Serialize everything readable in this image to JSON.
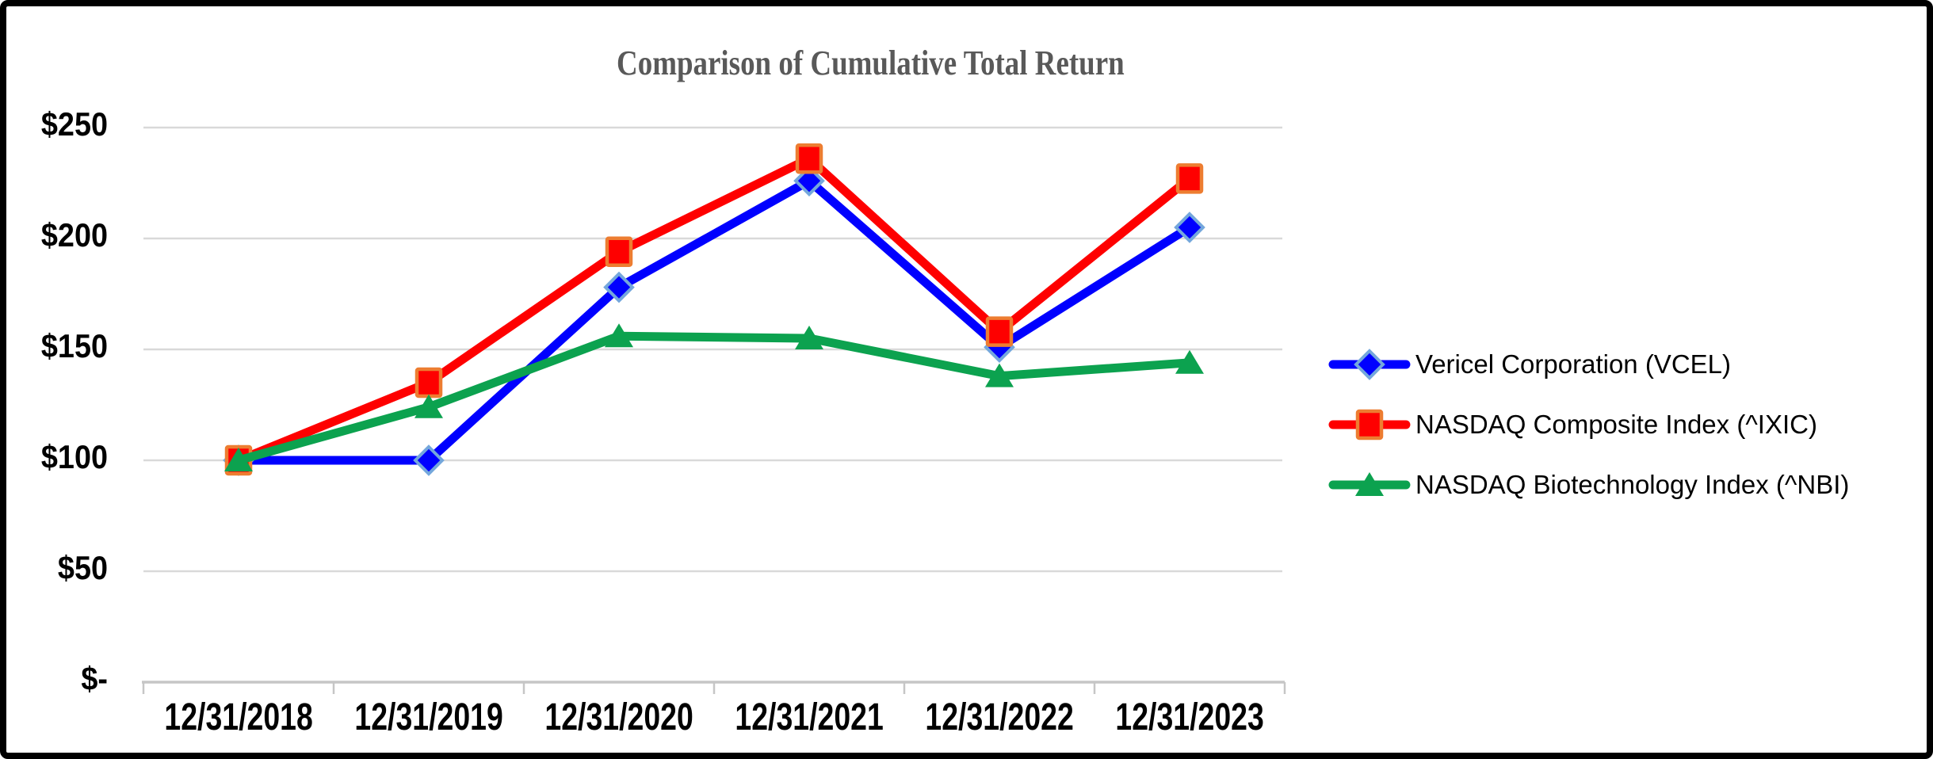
{
  "frame": {
    "background": "#FFFFFF",
    "border_color": "#000000"
  },
  "chart_data": {
    "type": "line",
    "title": "Comparison of Cumulative Total Return",
    "title_color": "#595959",
    "categories": [
      "12/31/2018",
      "12/31/2019",
      "12/31/2020",
      "12/31/2021",
      "12/31/2022",
      "12/31/2023"
    ],
    "series": [
      {
        "name": "Vericel Corporation (VCEL)",
        "marker": "diamond",
        "line_color": "#0000FF",
        "marker_fill": "#0000FF",
        "marker_border": "#74A7DC",
        "values": [
          100,
          100,
          178,
          226,
          151,
          205
        ]
      },
      {
        "name": "NASDAQ Composite Index (^IXIC)",
        "marker": "square",
        "line_color": "#FE0000",
        "marker_fill": "#FE0000",
        "marker_border": "#ED7D31",
        "values": [
          100,
          135,
          194,
          236,
          158,
          227
        ]
      },
      {
        "name": "NASDAQ Biotechnology Index (^NBI)",
        "marker": "triangle",
        "line_color": "#0CA24F",
        "marker_fill": "#0CA24F",
        "marker_border": "#0CA24F",
        "values": [
          100,
          124,
          156,
          155,
          138,
          144
        ]
      }
    ],
    "ylim": [
      0,
      250
    ],
    "ytick_values": [
      0,
      50,
      100,
      150,
      200,
      250
    ],
    "ytick_labels": [
      "$-",
      "$50",
      "$100",
      "$150",
      "$200",
      "$250"
    ],
    "xlabel": "",
    "ylabel": "",
    "grid": true,
    "gridline_color": "#D9D9D9",
    "axis_line_color": "#C6C6C6",
    "legend_position": "right"
  }
}
